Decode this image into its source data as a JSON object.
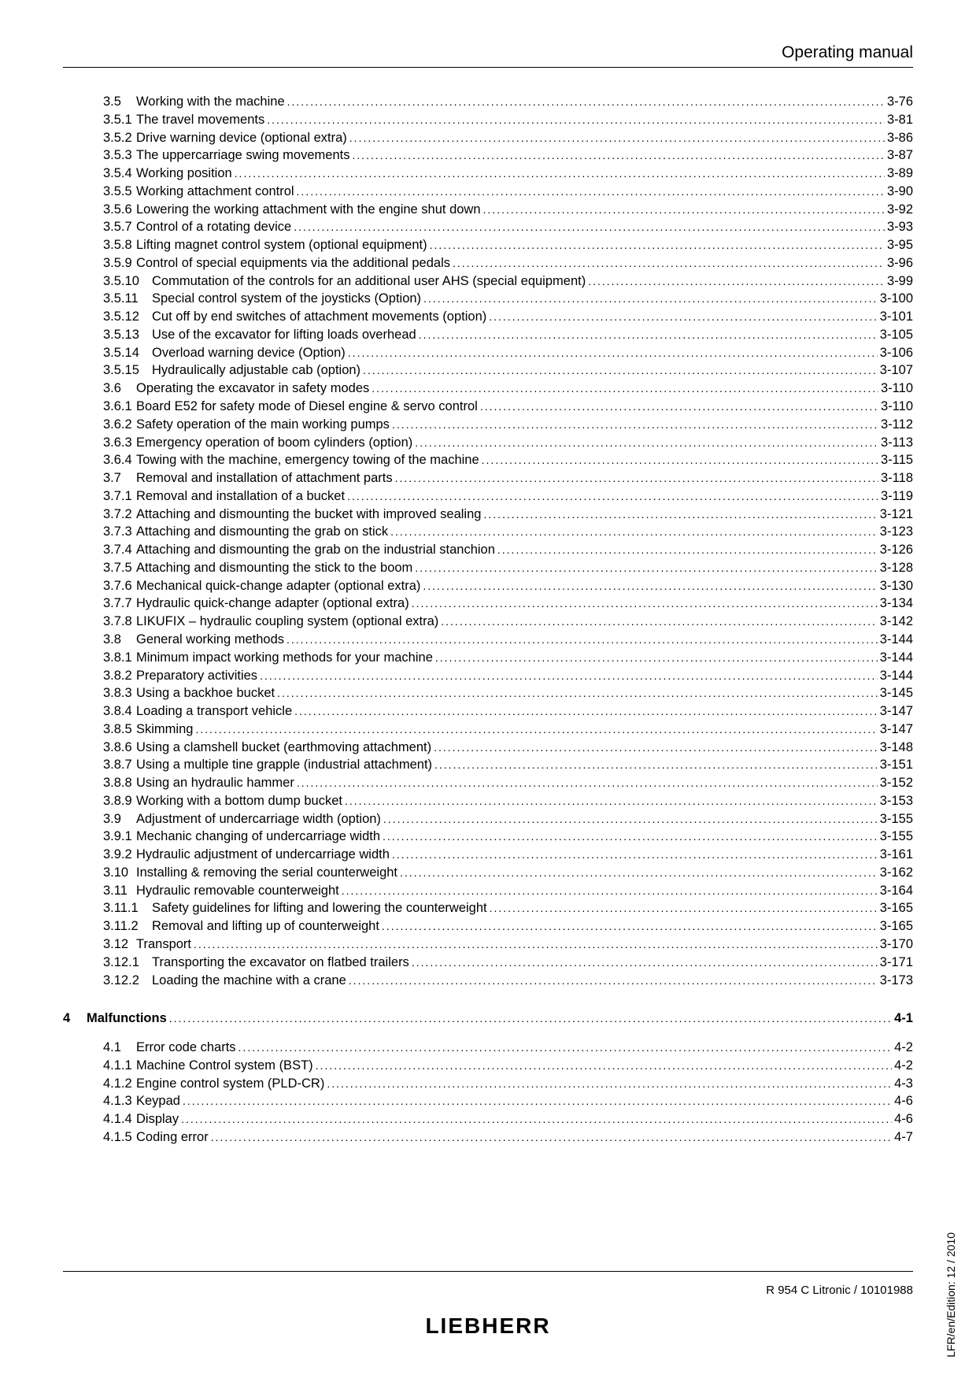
{
  "header": "Operating manual",
  "footer": "R 954 C Litronic / 10101988",
  "logo": "LIEBHERR",
  "side": "LFR/en/Edition: 12 / 2010",
  "rows": [
    {
      "lvl": "section",
      "n": "3.5",
      "t": "Working with the machine",
      "p": "3-76"
    },
    {
      "lvl": "sub",
      "n": "3.5.1",
      "t": "The travel movements",
      "p": "3-81"
    },
    {
      "lvl": "sub",
      "n": "3.5.2",
      "t": "Drive warning device (optional extra)",
      "p": "3-86"
    },
    {
      "lvl": "sub",
      "n": "3.5.3",
      "t": "The uppercarriage swing movements",
      "p": "3-87"
    },
    {
      "lvl": "sub",
      "n": "3.5.4",
      "t": "Working position",
      "p": "3-89"
    },
    {
      "lvl": "sub",
      "n": "3.5.5",
      "t": "Working attachment control",
      "p": "3-90"
    },
    {
      "lvl": "sub",
      "n": "3.5.6",
      "t": "Lowering the working attachment with the engine shut down",
      "p": "3-92"
    },
    {
      "lvl": "sub",
      "n": "3.5.7",
      "t": "Control of a rotating device",
      "p": "3-93"
    },
    {
      "lvl": "sub",
      "n": "3.5.8",
      "t": "Lifting magnet control system (optional equipment)",
      "p": "3-95"
    },
    {
      "lvl": "sub",
      "n": "3.5.9",
      "t": "Control of special equipments via the additional pedals",
      "p": "3-96"
    },
    {
      "lvl": "sub2",
      "n": "3.5.10",
      "t": "Commutation of the controls for an additional user AHS (special equipment)",
      "p": "3-99"
    },
    {
      "lvl": "sub2",
      "n": "3.5.11",
      "t": "Special control system of the joysticks (Option)",
      "p": "3-100"
    },
    {
      "lvl": "sub2",
      "n": "3.5.12",
      "t": "Cut off by end switches of attachment movements (option)",
      "p": "3-101"
    },
    {
      "lvl": "sub2",
      "n": "3.5.13",
      "t": "Use of the excavator for lifting loads overhead",
      "p": "3-105"
    },
    {
      "lvl": "sub2",
      "n": "3.5.14",
      "t": "Overload warning device (Option)",
      "p": "3-106"
    },
    {
      "lvl": "sub2",
      "n": "3.5.15",
      "t": "Hydraulically adjustable cab (option)",
      "p": "3-107"
    },
    {
      "lvl": "section",
      "n": "3.6",
      "t": "Operating the excavator in safety modes",
      "p": "3-110"
    },
    {
      "lvl": "sub",
      "n": "3.6.1",
      "t": "Board E52 for safety mode of Diesel engine & servo control",
      "p": "3-110"
    },
    {
      "lvl": "sub",
      "n": "3.6.2",
      "t": "Safety operation of the main working pumps",
      "p": "3-112"
    },
    {
      "lvl": "sub",
      "n": "3.6.3",
      "t": "Emergency operation of boom cylinders (option)",
      "p": "3-113"
    },
    {
      "lvl": "sub",
      "n": "3.6.4",
      "t": "Towing with the machine, emergency towing of the machine",
      "p": "3-115"
    },
    {
      "lvl": "section",
      "n": "3.7",
      "t": "Removal and installation of attachment parts",
      "p": "3-118"
    },
    {
      "lvl": "sub",
      "n": "3.7.1",
      "t": "Removal and installation of a bucket",
      "p": "3-119"
    },
    {
      "lvl": "sub",
      "n": "3.7.2",
      "t": "Attaching and dismounting the bucket with improved sealing",
      "p": "3-121"
    },
    {
      "lvl": "sub",
      "n": "3.7.3",
      "t": "Attaching and dismounting the grab on stick",
      "p": "3-123"
    },
    {
      "lvl": "sub",
      "n": "3.7.4",
      "t": "Attaching and dismounting the grab on the industrial stanchion",
      "p": "3-126"
    },
    {
      "lvl": "sub",
      "n": "3.7.5",
      "t": "Attaching and dismounting the stick to the boom",
      "p": "3-128"
    },
    {
      "lvl": "sub",
      "n": "3.7.6",
      "t": "Mechanical quick-change adapter (optional extra)",
      "p": "3-130"
    },
    {
      "lvl": "sub",
      "n": "3.7.7",
      "t": "Hydraulic quick-change adapter (optional extra)",
      "p": "3-134"
    },
    {
      "lvl": "sub",
      "n": "3.7.8",
      "t": "LIKUFIX – hydraulic coupling system (optional extra)",
      "p": "3-142"
    },
    {
      "lvl": "section",
      "n": "3.8",
      "t": "General working methods",
      "p": "3-144"
    },
    {
      "lvl": "sub",
      "n": "3.8.1",
      "t": "Minimum impact working methods for your machine",
      "p": "3-144"
    },
    {
      "lvl": "sub",
      "n": "3.8.2",
      "t": "Preparatory activities",
      "p": "3-144"
    },
    {
      "lvl": "sub",
      "n": "3.8.3",
      "t": "Using a backhoe bucket",
      "p": "3-145"
    },
    {
      "lvl": "sub",
      "n": "3.8.4",
      "t": "Loading a transport vehicle",
      "p": "3-147"
    },
    {
      "lvl": "sub",
      "n": "3.8.5",
      "t": "Skimming",
      "p": "3-147"
    },
    {
      "lvl": "sub",
      "n": "3.8.6",
      "t": "Using a clamshell bucket (earthmoving attachment)",
      "p": "3-148"
    },
    {
      "lvl": "sub",
      "n": "3.8.7",
      "t": "Using a multiple tine grapple (industrial attachment)",
      "p": "3-151"
    },
    {
      "lvl": "sub",
      "n": "3.8.8",
      "t": "Using an hydraulic hammer",
      "p": "3-152"
    },
    {
      "lvl": "sub",
      "n": "3.8.9",
      "t": "Working with a bottom dump bucket",
      "p": "3-153"
    },
    {
      "lvl": "section",
      "n": "3.9",
      "t": "Adjustment of undercarriage width (option)",
      "p": "3-155"
    },
    {
      "lvl": "sub",
      "n": "3.9.1",
      "t": "Mechanic changing of undercarriage width",
      "p": "3-155"
    },
    {
      "lvl": "sub",
      "n": "3.9.2",
      "t": "Hydraulic adjustment of undercarriage width",
      "p": "3-161"
    },
    {
      "lvl": "section",
      "n": "3.10",
      "t": "Installing & removing the serial counterweight",
      "p": "3-162"
    },
    {
      "lvl": "section",
      "n": "3.11",
      "t": "Hydraulic removable counterweight",
      "p": "3-164"
    },
    {
      "lvl": "sub2",
      "n": "3.11.1",
      "t": "Safety guidelines for lifting and lowering the counterweight",
      "p": "3-165"
    },
    {
      "lvl": "sub2",
      "n": "3.11.2",
      "t": "Removal and lifting up of counterweight",
      "p": "3-165"
    },
    {
      "lvl": "section",
      "n": "3.12",
      "t": "Transport",
      "p": "3-170"
    },
    {
      "lvl": "sub2",
      "n": "3.12.1",
      "t": "Transporting the excavator on flatbed trailers",
      "p": "3-171"
    },
    {
      "lvl": "sub2",
      "n": "3.12.2",
      "t": "Loading the machine with a crane",
      "p": "3-173"
    },
    {
      "lvl": "gap"
    },
    {
      "lvl": "chapter",
      "n": "4",
      "t": "Malfunctions",
      "p": "4-1"
    },
    {
      "lvl": "midgap"
    },
    {
      "lvl": "section",
      "n": "4.1",
      "t": "Error code charts",
      "p": "4-2"
    },
    {
      "lvl": "sub",
      "n": "4.1.1",
      "t": "Machine Control system (BST)",
      "p": "4-2"
    },
    {
      "lvl": "sub",
      "n": "4.1.2",
      "t": "Engine control system (PLD-CR)",
      "p": "4-3"
    },
    {
      "lvl": "sub",
      "n": "4.1.3",
      "t": "Keypad",
      "p": "4-6"
    },
    {
      "lvl": "sub",
      "n": "4.1.4",
      "t": "Display",
      "p": "4-6"
    },
    {
      "lvl": "sub",
      "n": "4.1.5",
      "t": "Coding error",
      "p": "4-7"
    }
  ]
}
